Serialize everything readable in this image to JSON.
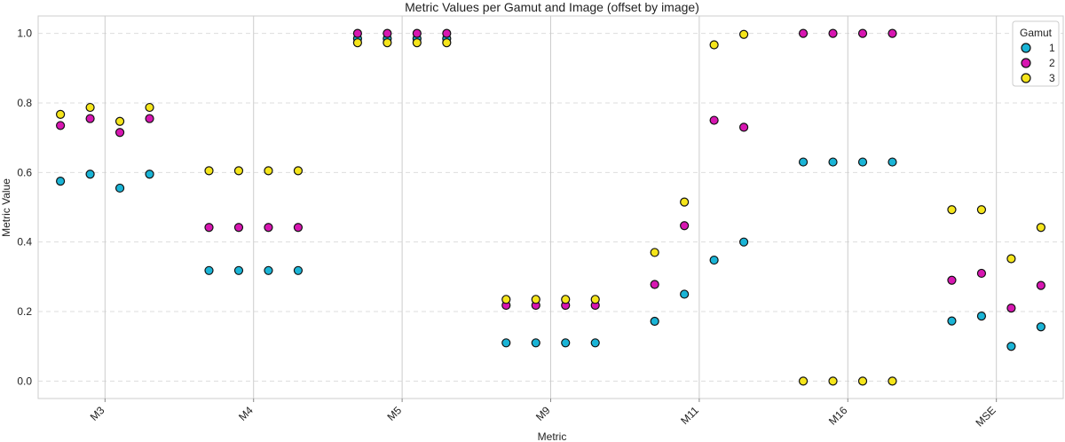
{
  "chart_data": {
    "type": "scatter",
    "title": "Metric Values per Gamut and Image (offset by image)",
    "xlabel": "Metric",
    "ylabel": "Metric Value",
    "categories": [
      "M3",
      "M4",
      "M5",
      "M9",
      "M11",
      "M16",
      "MSE"
    ],
    "ylim": [
      -0.05,
      1.05
    ],
    "yticks": [
      "0.0",
      "0.2",
      "0.4",
      "0.6",
      "0.8",
      "1.0"
    ],
    "grid": "horizontal dashed, vertical solid at categories",
    "x_tick_rotation_deg": 45,
    "image_offsets": [
      -0.3,
      -0.1,
      0.1,
      0.3
    ],
    "legend": {
      "title": "Gamut",
      "position": "top-right"
    },
    "series": [
      {
        "name": "1",
        "color": "#1ab4d6",
        "values": [
          [
            0.575,
            0.595,
            0.555,
            0.595
          ],
          [
            0.318,
            0.318,
            0.318,
            0.318
          ],
          [
            0.985,
            0.985,
            0.985,
            0.985
          ],
          [
            0.11,
            0.11,
            0.11,
            0.11
          ],
          [
            0.172,
            0.25,
            0.348,
            0.4
          ],
          [
            0.63,
            0.63,
            0.63,
            0.63
          ],
          [
            0.173,
            0.187,
            0.1,
            0.156
          ]
        ]
      },
      {
        "name": "2",
        "color": "#d716b1",
        "values": [
          [
            0.735,
            0.755,
            0.715,
            0.755
          ],
          [
            0.442,
            0.442,
            0.442,
            0.442
          ],
          [
            1.0,
            1.0,
            1.0,
            1.0
          ],
          [
            0.218,
            0.218,
            0.218,
            0.218
          ],
          [
            0.278,
            0.447,
            0.75,
            0.73
          ],
          [
            1.0,
            1.0,
            1.0,
            1.0
          ],
          [
            0.29,
            0.31,
            0.21,
            0.275
          ]
        ]
      },
      {
        "name": "3",
        "color": "#f5e51b",
        "values": [
          [
            0.767,
            0.787,
            0.747,
            0.787
          ],
          [
            0.605,
            0.605,
            0.605,
            0.605
          ],
          [
            0.973,
            0.973,
            0.973,
            0.973
          ],
          [
            0.235,
            0.235,
            0.235,
            0.235
          ],
          [
            0.37,
            0.515,
            0.967,
            0.997
          ],
          [
            0.0,
            0.0,
            0.0,
            0.0
          ],
          [
            0.493,
            0.493,
            0.352,
            0.442
          ]
        ]
      }
    ]
  }
}
